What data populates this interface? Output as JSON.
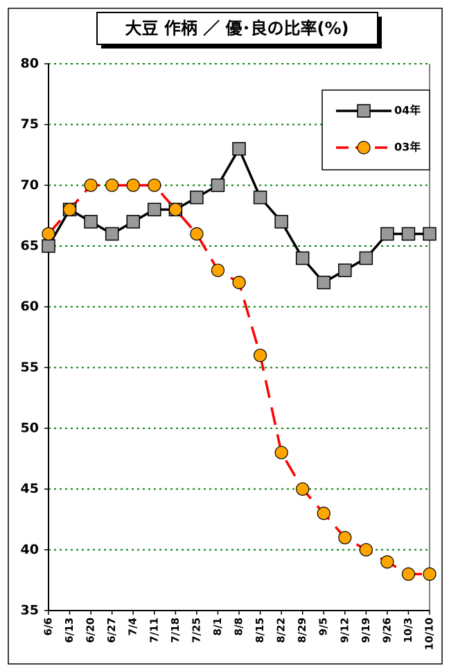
{
  "chart_data": {
    "type": "line",
    "title": "大豆 作柄 ／ 優･良の比率(%)",
    "categories": [
      "6/6",
      "6/13",
      "6/20",
      "6/27",
      "7/4",
      "7/11",
      "7/18",
      "7/25",
      "8/1",
      "8/8",
      "8/15",
      "8/22",
      "8/29",
      "9/5",
      "9/12",
      "9/19",
      "9/26",
      "10/3",
      "10/10"
    ],
    "series": [
      {
        "name": "04年",
        "color": "#000000",
        "marker": "square",
        "marker_color": "#999999",
        "dashed": false,
        "values": [
          65,
          68,
          67,
          66,
          67,
          68,
          68,
          69,
          70,
          73,
          69,
          67,
          64,
          62,
          63,
          64,
          66,
          66,
          66
        ]
      },
      {
        "name": "03年",
        "color": "#ff0000",
        "marker": "circle",
        "marker_color": "#ffa500",
        "dashed": true,
        "values": [
          66,
          68,
          70,
          70,
          70,
          70,
          68,
          66,
          63,
          62,
          56,
          48,
          45,
          43,
          41,
          40,
          39,
          38,
          38
        ]
      }
    ],
    "ylim": [
      35,
      80
    ],
    "yticks": [
      35,
      40,
      45,
      50,
      55,
      60,
      65,
      70,
      75,
      80
    ],
    "grid": true,
    "grid_color": "#008000",
    "legend": "upper right"
  }
}
